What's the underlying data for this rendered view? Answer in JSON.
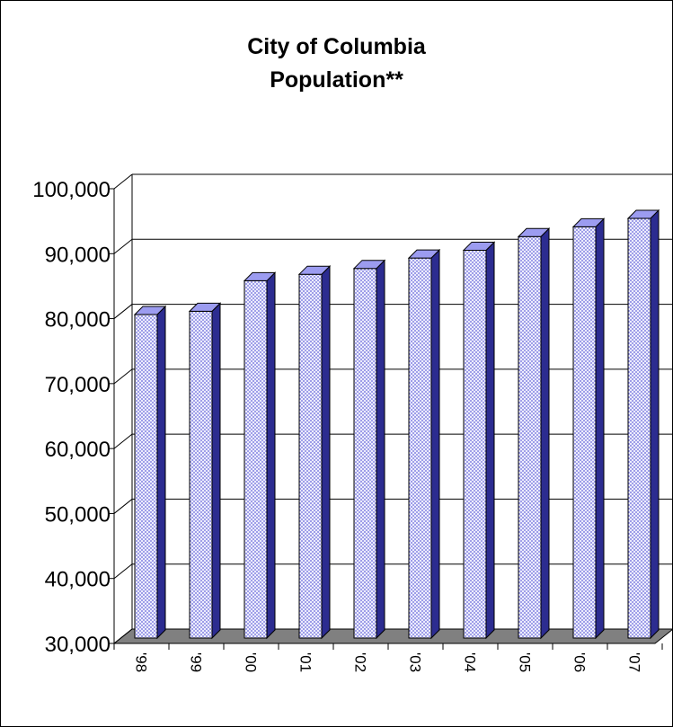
{
  "title_lines": [
    "City of Columbia",
    "Population**"
  ],
  "chart_data": {
    "type": "bar",
    "title": "City of Columbia Population**",
    "categories": [
      "'98",
      "'99",
      "'00",
      "'01",
      "'02",
      "'03",
      "'04",
      "'05",
      "'06",
      "'07"
    ],
    "values": [
      79800,
      80300,
      85000,
      86000,
      86900,
      88500,
      89700,
      91800,
      93300,
      94600
    ],
    "ylim": [
      30000,
      100000
    ],
    "ytick_labels": [
      "30,000",
      "40,000",
      "50,000",
      "60,000",
      "70,000",
      "80,000",
      "90,000",
      "100,000"
    ],
    "yticks": [
      30000,
      40000,
      50000,
      60000,
      70000,
      80000,
      90000,
      100000
    ],
    "grid": true,
    "three_d": true,
    "colors": {
      "bar_face": "#7f7fe0",
      "bar_pattern": "#f4f4ff",
      "bar_top": "#9c9cf0",
      "bar_side": "#2c2c90",
      "floor": "#808080"
    }
  }
}
